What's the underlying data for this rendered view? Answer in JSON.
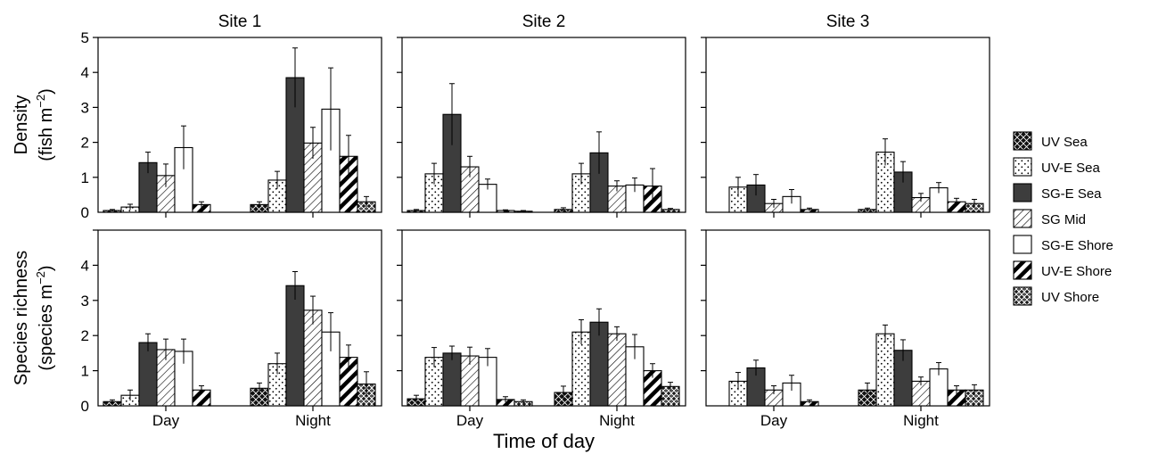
{
  "figure": {
    "xlabel": "Time of day",
    "sites": [
      "Site 1",
      "Site 2",
      "Site 3"
    ],
    "groups": [
      "Day",
      "Night"
    ]
  },
  "legend": [
    {
      "name": "UV Sea",
      "pattern": "xcross"
    },
    {
      "name": "UV-E Sea",
      "pattern": "dots"
    },
    {
      "name": "SG-E Sea",
      "pattern": "dark"
    },
    {
      "name": "SG Mid",
      "pattern": "hatch"
    },
    {
      "name": "SG-E Shore",
      "pattern": "white"
    },
    {
      "name": "UV-E Shore",
      "pattern": "stripes"
    },
    {
      "name": "UV Shore",
      "pattern": "weave"
    }
  ],
  "colors": {
    "dark_fill": "#3d3d3d",
    "stroke": "#000000",
    "background": "#ffffff"
  },
  "chart_data": [
    {
      "type": "bar",
      "metric": "Density",
      "ylabel_line1": "Density",
      "ylabel_line2": "(fish m",
      "ylabel_sup": "−2",
      "ylabel_close": ")",
      "ylim": [
        0,
        5
      ],
      "yticks": [
        "0",
        "1",
        "2",
        "3",
        "4",
        "5"
      ],
      "panels": [
        {
          "site": "Site 1",
          "categories": [
            "Day",
            "Night"
          ],
          "series": [
            {
              "name": "UV Sea",
              "values": [
                0.05,
                0.22
              ],
              "errors": [
                0.03,
                0.08
              ]
            },
            {
              "name": "UV-E Sea",
              "values": [
                0.15,
                0.92
              ],
              "errors": [
                0.08,
                0.25
              ]
            },
            {
              "name": "SG-E Sea",
              "values": [
                1.42,
                3.85
              ],
              "errors": [
                0.3,
                0.85
              ]
            },
            {
              "name": "SG Mid",
              "values": [
                1.05,
                1.98
              ],
              "errors": [
                0.33,
                0.45
              ]
            },
            {
              "name": "SG-E Shore",
              "values": [
                1.85,
                2.95
              ],
              "errors": [
                0.62,
                1.18
              ]
            },
            {
              "name": "UV-E Shore",
              "values": [
                0.22,
                1.6
              ],
              "errors": [
                0.08,
                0.6
              ]
            },
            {
              "name": "UV Shore",
              "values": [
                0.0,
                0.3
              ],
              "errors": [
                0.0,
                0.15
              ]
            }
          ]
        },
        {
          "site": "Site 2",
          "categories": [
            "Day",
            "Night"
          ],
          "series": [
            {
              "name": "UV Sea",
              "values": [
                0.05,
                0.08
              ],
              "errors": [
                0.03,
                0.05
              ]
            },
            {
              "name": "UV-E Sea",
              "values": [
                1.1,
                1.1
              ],
              "errors": [
                0.3,
                0.3
              ]
            },
            {
              "name": "SG-E Sea",
              "values": [
                2.8,
                1.7
              ],
              "errors": [
                0.88,
                0.6
              ]
            },
            {
              "name": "SG Mid",
              "values": [
                1.3,
                0.75
              ],
              "errors": [
                0.3,
                0.15
              ]
            },
            {
              "name": "SG-E Shore",
              "values": [
                0.8,
                0.78
              ],
              "errors": [
                0.15,
                0.2
              ]
            },
            {
              "name": "UV-E Shore",
              "values": [
                0.05,
                0.75
              ],
              "errors": [
                0.02,
                0.5
              ]
            },
            {
              "name": "UV Shore",
              "values": [
                0.03,
                0.08
              ],
              "errors": [
                0.02,
                0.03
              ]
            }
          ]
        },
        {
          "site": "Site 3",
          "categories": [
            "Day",
            "Night"
          ],
          "series": [
            {
              "name": "UV Sea",
              "values": [
                0.0,
                0.08
              ],
              "errors": [
                0.0,
                0.04
              ]
            },
            {
              "name": "UV-E Sea",
              "values": [
                0.72,
                1.72
              ],
              "errors": [
                0.28,
                0.38
              ]
            },
            {
              "name": "SG-E Sea",
              "values": [
                0.78,
                1.15
              ],
              "errors": [
                0.3,
                0.3
              ]
            },
            {
              "name": "SG Mid",
              "values": [
                0.25,
                0.42
              ],
              "errors": [
                0.12,
                0.12
              ]
            },
            {
              "name": "SG-E Shore",
              "values": [
                0.45,
                0.7
              ],
              "errors": [
                0.2,
                0.15
              ]
            },
            {
              "name": "UV-E Shore",
              "values": [
                0.08,
                0.3
              ],
              "errors": [
                0.04,
                0.1
              ]
            },
            {
              "name": "UV Shore",
              "values": [
                0.0,
                0.25
              ],
              "errors": [
                0.0,
                0.12
              ]
            }
          ]
        }
      ]
    },
    {
      "type": "bar",
      "metric": "Species richness",
      "ylabel_line1": "Species richness",
      "ylabel_line2": "(species m",
      "ylabel_sup": "−2",
      "ylabel_close": ")",
      "ylim": [
        0,
        5
      ],
      "yticks": [
        "0",
        "1",
        "2",
        "3",
        "4",
        ""
      ],
      "panels": [
        {
          "site": "Site 1",
          "categories": [
            "Day",
            "Night"
          ],
          "series": [
            {
              "name": "UV Sea",
              "values": [
                0.12,
                0.5
              ],
              "errors": [
                0.05,
                0.15
              ]
            },
            {
              "name": "UV-E Sea",
              "values": [
                0.3,
                1.2
              ],
              "errors": [
                0.15,
                0.3
              ]
            },
            {
              "name": "SG-E Sea",
              "values": [
                1.8,
                3.42
              ],
              "errors": [
                0.25,
                0.4
              ]
            },
            {
              "name": "SG Mid",
              "values": [
                1.6,
                2.72
              ],
              "errors": [
                0.3,
                0.4
              ]
            },
            {
              "name": "SG-E Shore",
              "values": [
                1.55,
                2.1
              ],
              "errors": [
                0.35,
                0.55
              ]
            },
            {
              "name": "UV-E Shore",
              "values": [
                0.45,
                1.38
              ],
              "errors": [
                0.12,
                0.35
              ]
            },
            {
              "name": "UV Shore",
              "values": [
                0.0,
                0.62
              ],
              "errors": [
                0.0,
                0.35
              ]
            }
          ]
        },
        {
          "site": "Site 2",
          "categories": [
            "Day",
            "Night"
          ],
          "series": [
            {
              "name": "UV Sea",
              "values": [
                0.2,
                0.38
              ],
              "errors": [
                0.1,
                0.18
              ]
            },
            {
              "name": "UV-E Sea",
              "values": [
                1.38,
                2.1
              ],
              "errors": [
                0.28,
                0.35
              ]
            },
            {
              "name": "SG-E Sea",
              "values": [
                1.5,
                2.38
              ],
              "errors": [
                0.2,
                0.38
              ]
            },
            {
              "name": "SG Mid",
              "values": [
                1.42,
                2.05
              ],
              "errors": [
                0.25,
                0.2
              ]
            },
            {
              "name": "SG-E Shore",
              "values": [
                1.38,
                1.68
              ],
              "errors": [
                0.25,
                0.35
              ]
            },
            {
              "name": "UV-E Shore",
              "values": [
                0.18,
                1.0
              ],
              "errors": [
                0.08,
                0.2
              ]
            },
            {
              "name": "UV Shore",
              "values": [
                0.12,
                0.55
              ],
              "errors": [
                0.05,
                0.12
              ]
            }
          ]
        },
        {
          "site": "Site 3",
          "categories": [
            "Day",
            "Night"
          ],
          "series": [
            {
              "name": "UV Sea",
              "values": [
                0.0,
                0.45
              ],
              "errors": [
                0.0,
                0.2
              ]
            },
            {
              "name": "UV-E Sea",
              "values": [
                0.7,
                2.05
              ],
              "errors": [
                0.25,
                0.25
              ]
            },
            {
              "name": "SG-E Sea",
              "values": [
                1.08,
                1.58
              ],
              "errors": [
                0.22,
                0.3
              ]
            },
            {
              "name": "SG Mid",
              "values": [
                0.45,
                0.7
              ],
              "errors": [
                0.12,
                0.12
              ]
            },
            {
              "name": "SG-E Shore",
              "values": [
                0.65,
                1.05
              ],
              "errors": [
                0.22,
                0.18
              ]
            },
            {
              "name": "UV-E Shore",
              "values": [
                0.12,
                0.45
              ],
              "errors": [
                0.05,
                0.12
              ]
            },
            {
              "name": "UV Shore",
              "values": [
                0.0,
                0.45
              ],
              "errors": [
                0.0,
                0.15
              ]
            }
          ]
        }
      ]
    }
  ]
}
